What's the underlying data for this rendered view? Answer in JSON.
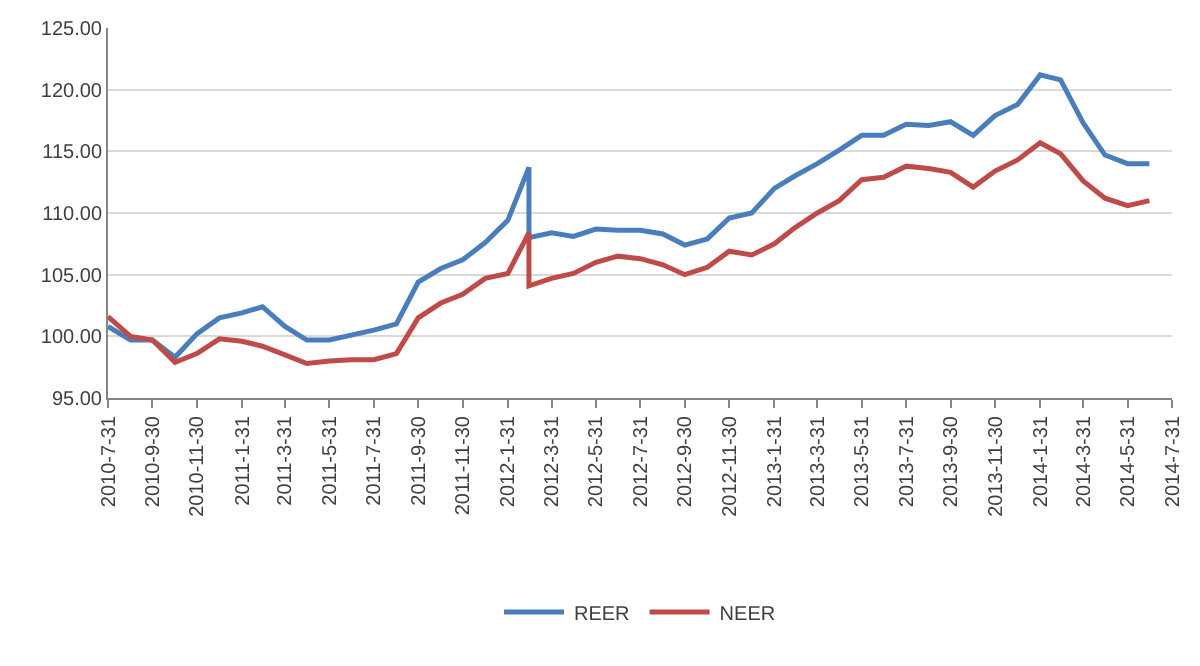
{
  "chart_data": {
    "type": "line",
    "x": [
      "2010-07-31",
      "2010-08-31",
      "2010-09-30",
      "2010-10-31",
      "2010-11-30",
      "2010-12-31",
      "2011-01-31",
      "2011-02-28",
      "2011-03-31",
      "2011-04-30",
      "2011-05-31",
      "2011-06-30",
      "2011-07-31",
      "2011-08-31",
      "2011-09-30",
      "2011-10-31",
      "2011-11-30",
      "2011-12-31",
      "2012-01-31",
      "2012-02-29",
      "2012-02-29",
      "2012-03-31",
      "2012-04-30",
      "2012-05-31",
      "2012-06-30",
      "2012-07-31",
      "2012-08-31",
      "2012-09-30",
      "2012-10-31",
      "2012-11-30",
      "2012-12-31",
      "2013-01-31",
      "2013-02-28",
      "2013-03-31",
      "2013-04-30",
      "2013-05-31",
      "2013-06-30",
      "2013-07-31",
      "2013-08-31",
      "2013-09-30",
      "2013-10-31",
      "2013-11-30",
      "2013-12-31",
      "2014-01-31",
      "2014-02-28",
      "2014-03-31",
      "2014-04-30",
      "2014-05-31",
      "2014-06-30"
    ],
    "series": [
      {
        "name": "REER",
        "color": "#4a7ebb",
        "values": [
          100.8,
          99.7,
          99.7,
          98.3,
          100.2,
          101.5,
          101.9,
          102.4,
          100.8,
          99.7,
          99.7,
          100.1,
          100.5,
          101.0,
          104.4,
          105.5,
          106.2,
          107.6,
          109.4,
          113.7,
          108.0,
          108.4,
          108.1,
          108.7,
          108.6,
          108.6,
          108.3,
          107.4,
          107.9,
          109.6,
          110.0,
          112.0,
          113.0,
          114.0,
          115.1,
          116.3,
          116.3,
          117.2,
          117.1,
          117.4,
          116.3,
          117.9,
          118.8,
          121.2,
          120.8,
          117.3,
          114.7,
          114.0,
          114.0
        ]
      },
      {
        "name": "NEER",
        "color": "#be4b48",
        "values": [
          101.6,
          100.0,
          99.7,
          97.9,
          98.6,
          99.8,
          99.6,
          99.2,
          98.5,
          97.8,
          98.0,
          98.1,
          98.1,
          98.6,
          101.5,
          102.7,
          103.4,
          104.7,
          105.1,
          108.4,
          104.1,
          104.7,
          105.1,
          106.0,
          106.5,
          106.3,
          105.8,
          105.0,
          105.6,
          106.9,
          106.6,
          107.5,
          108.8,
          110.0,
          111.0,
          112.7,
          112.9,
          113.8,
          113.6,
          113.3,
          112.1,
          113.4,
          114.3,
          115.7,
          114.8,
          112.6,
          111.2,
          110.6,
          111.0
        ]
      }
    ],
    "xlim": [
      "2010-07-31",
      "2014-07-31"
    ],
    "xticks": [
      {
        "value": "2010-07-31",
        "label": "2010-7-31"
      },
      {
        "value": "2010-09-30",
        "label": "2010-9-30"
      },
      {
        "value": "2010-11-30",
        "label": "2010-11-30"
      },
      {
        "value": "2011-01-31",
        "label": "2011-1-31"
      },
      {
        "value": "2011-03-31",
        "label": "2011-3-31"
      },
      {
        "value": "2011-05-31",
        "label": "2011-5-31"
      },
      {
        "value": "2011-07-31",
        "label": "2011-7-31"
      },
      {
        "value": "2011-09-30",
        "label": "2011-9-30"
      },
      {
        "value": "2011-11-30",
        "label": "2011-11-30"
      },
      {
        "value": "2012-01-31",
        "label": "2012-1-31"
      },
      {
        "value": "2012-03-31",
        "label": "2012-3-31"
      },
      {
        "value": "2012-05-31",
        "label": "2012-5-31"
      },
      {
        "value": "2012-07-31",
        "label": "2012-7-31"
      },
      {
        "value": "2012-09-30",
        "label": "2012-9-30"
      },
      {
        "value": "2012-11-30",
        "label": "2012-11-30"
      },
      {
        "value": "2013-01-31",
        "label": "2013-1-31"
      },
      {
        "value": "2013-03-31",
        "label": "2013-3-31"
      },
      {
        "value": "2013-05-31",
        "label": "2013-5-31"
      },
      {
        "value": "2013-07-31",
        "label": "2013-7-31"
      },
      {
        "value": "2013-09-30",
        "label": "2013-9-30"
      },
      {
        "value": "2013-11-30",
        "label": "2013-11-30"
      },
      {
        "value": "2014-01-31",
        "label": "2014-1-31"
      },
      {
        "value": "2014-03-31",
        "label": "2014-3-31"
      },
      {
        "value": "2014-05-31",
        "label": "2014-5-31"
      },
      {
        "value": "2014-07-31",
        "label": "2014-7-31"
      }
    ],
    "ylim": [
      95,
      125
    ],
    "yticks": [
      {
        "value": 95,
        "label": "95.00"
      },
      {
        "value": 100,
        "label": "100.00"
      },
      {
        "value": 105,
        "label": "105.00"
      },
      {
        "value": 110,
        "label": "110.00"
      },
      {
        "value": 115,
        "label": "115.00"
      },
      {
        "value": 120,
        "label": "120.00"
      },
      {
        "value": 125,
        "label": "125.00"
      }
    ],
    "grid": "y",
    "legend": "bottom",
    "marker": "none",
    "line_style": "solid"
  }
}
